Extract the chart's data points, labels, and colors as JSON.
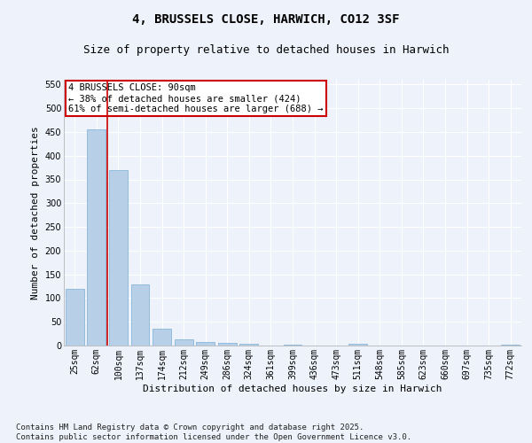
{
  "title": "4, BRUSSELS CLOSE, HARWICH, CO12 3SF",
  "subtitle": "Size of property relative to detached houses in Harwich",
  "xlabel": "Distribution of detached houses by size in Harwich",
  "ylabel": "Number of detached properties",
  "categories": [
    "25sqm",
    "62sqm",
    "100sqm",
    "137sqm",
    "174sqm",
    "212sqm",
    "249sqm",
    "286sqm",
    "324sqm",
    "361sqm",
    "399sqm",
    "436sqm",
    "473sqm",
    "511sqm",
    "548sqm",
    "585sqm",
    "623sqm",
    "660sqm",
    "697sqm",
    "735sqm",
    "772sqm"
  ],
  "values": [
    120,
    455,
    370,
    128,
    35,
    13,
    7,
    5,
    4,
    0,
    1,
    0,
    0,
    3,
    0,
    0,
    0,
    0,
    0,
    0,
    2
  ],
  "bar_color": "#b8cfe8",
  "bar_edge_color": "#7aadd4",
  "vline_x_index": 1,
  "vline_color": "#cc0000",
  "annotation_text": "4 BRUSSELS CLOSE: 90sqm\n← 38% of detached houses are smaller (424)\n61% of semi-detached houses are larger (688) →",
  "annotation_box_color": "#ffffff",
  "annotation_box_edge": "#cc0000",
  "ylim": [
    0,
    560
  ],
  "yticks": [
    0,
    50,
    100,
    150,
    200,
    250,
    300,
    350,
    400,
    450,
    500,
    550
  ],
  "bg_color": "#eef2fb",
  "grid_color": "#ffffff",
  "footer": "Contains HM Land Registry data © Crown copyright and database right 2025.\nContains public sector information licensed under the Open Government Licence v3.0.",
  "title_fontsize": 10,
  "subtitle_fontsize": 9,
  "xlabel_fontsize": 8,
  "ylabel_fontsize": 8,
  "tick_fontsize": 7,
  "annotation_fontsize": 7.5,
  "footer_fontsize": 6.5
}
